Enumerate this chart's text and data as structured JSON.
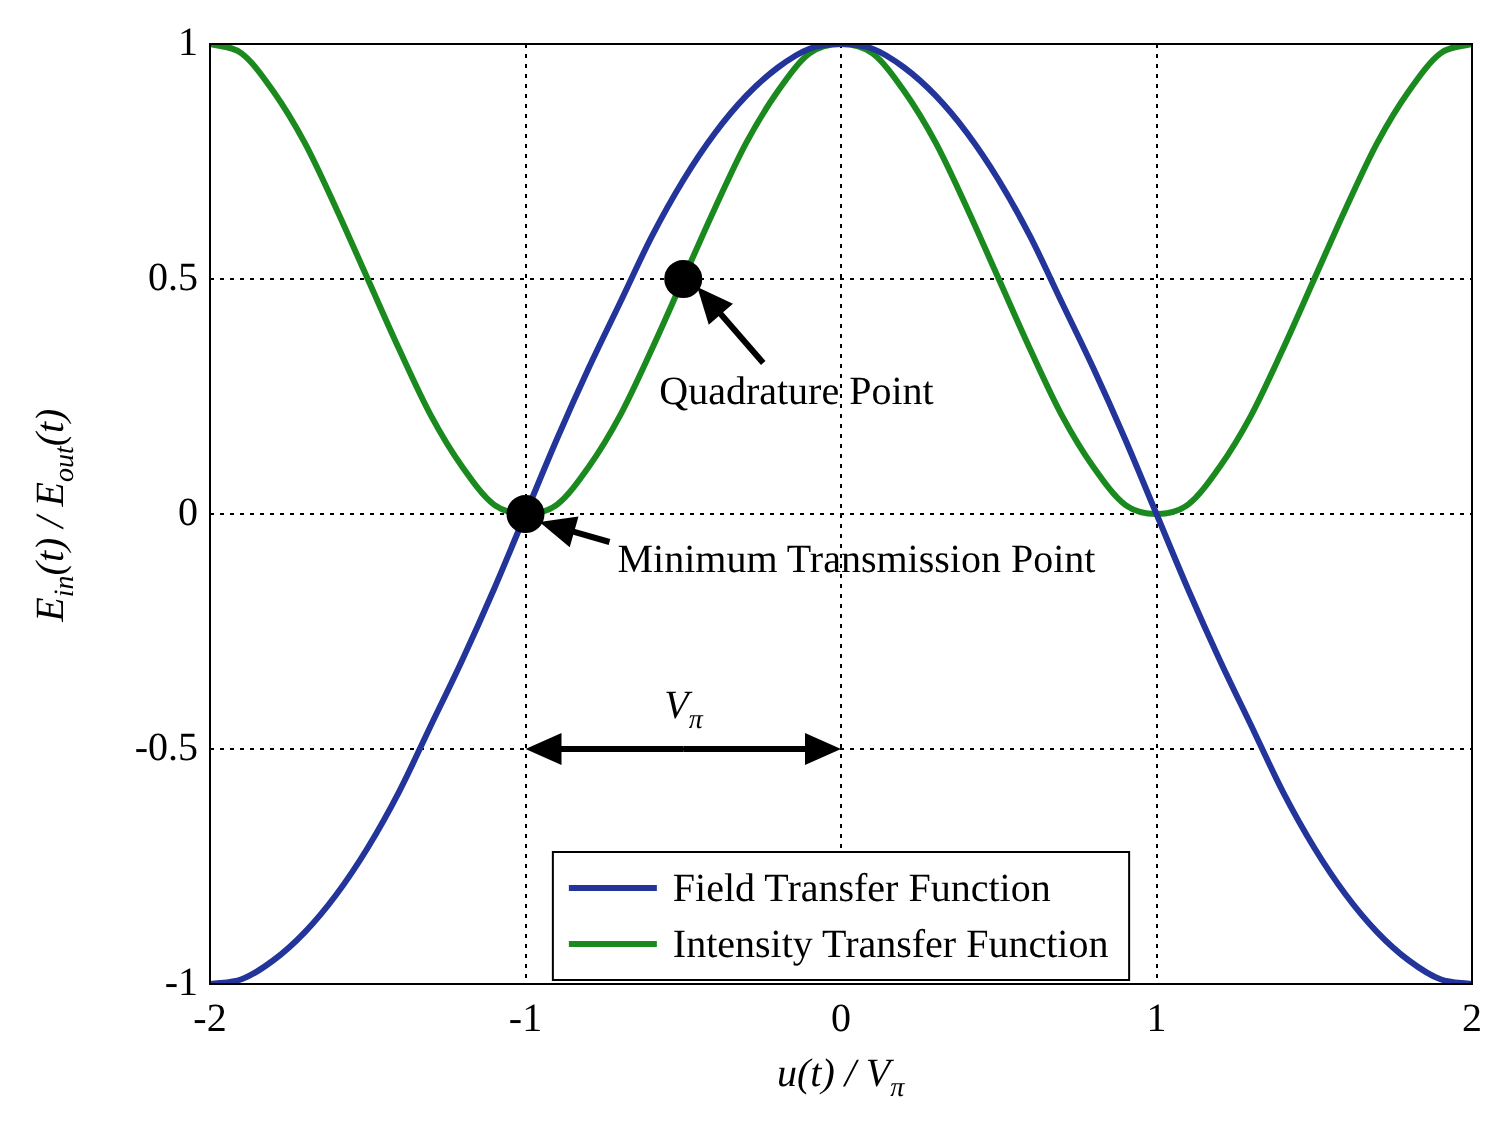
{
  "chart_data": {
    "type": "line",
    "xlabel": "u(t) / V$_{π}$",
    "ylabel": "E$_{in}$(t) / E$_{out}$(t)",
    "x": [
      -2,
      -1.9,
      -1.8,
      -1.7,
      -1.6,
      -1.5,
      -1.4,
      -1.3,
      -1.2,
      -1.1,
      -1,
      -0.9,
      -0.8,
      -0.7,
      -0.6,
      -0.5,
      -0.4,
      -0.3,
      -0.2,
      -0.1,
      0,
      0.1,
      0.2,
      0.3,
      0.4,
      0.5,
      0.6,
      0.7,
      0.8,
      0.9,
      1,
      1.1,
      1.2,
      1.3,
      1.4,
      1.5,
      1.6,
      1.7,
      1.8,
      1.9,
      2
    ],
    "series": [
      {
        "name": "Field Transfer Function",
        "color": "#23349a",
        "values": [
          -1,
          -0.99,
          -0.95,
          -0.89,
          -0.81,
          -0.71,
          -0.59,
          -0.45,
          -0.31,
          -0.16,
          0,
          0.16,
          0.31,
          0.45,
          0.59,
          0.71,
          0.81,
          0.89,
          0.95,
          0.99,
          1,
          0.99,
          0.95,
          0.89,
          0.81,
          0.71,
          0.59,
          0.45,
          0.31,
          0.16,
          0,
          -0.16,
          -0.31,
          -0.45,
          -0.59,
          -0.71,
          -0.81,
          -0.89,
          -0.95,
          -0.99,
          -1
        ]
      },
      {
        "name": "Intensity Transfer Function",
        "color": "#1a8a1f",
        "values": [
          1,
          0.98,
          0.9,
          0.79,
          0.65,
          0.5,
          0.35,
          0.21,
          0.1,
          0.02,
          0,
          0.02,
          0.1,
          0.21,
          0.35,
          0.5,
          0.65,
          0.79,
          0.9,
          0.98,
          1,
          0.98,
          0.9,
          0.79,
          0.65,
          0.5,
          0.35,
          0.21,
          0.1,
          0.02,
          0,
          0.02,
          0.1,
          0.21,
          0.35,
          0.5,
          0.65,
          0.79,
          0.9,
          0.98,
          1
        ]
      },
      {
        "type": "scatter",
        "color": "#000000",
        "marker": "circle",
        "x": [
          -1,
          -0.5
        ],
        "values": [
          0,
          0.5
        ]
      }
    ],
    "xlim": [
      -2,
      2
    ],
    "xticks": [
      -2,
      -1,
      0,
      1,
      2
    ],
    "ylim": [
      -1,
      1
    ],
    "yticks": [
      -1,
      -0.5,
      0,
      0.5,
      1
    ],
    "grid": true,
    "legend": "bottom",
    "marker": "none",
    "line_style": "solid",
    "annotations": [
      "Quadrature Point",
      "Minimum Transmission Point",
      "V$_{π}$"
    ]
  }
}
